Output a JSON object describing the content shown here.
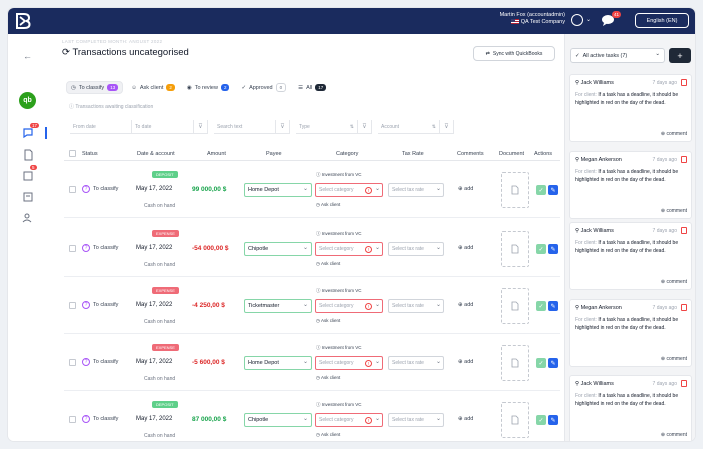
{
  "topbar": {
    "user_name": "Martin Fox (accountadmin)",
    "company": "QA Test Company",
    "chat_badge": "41",
    "language": "English (EN)"
  },
  "sidebar": {
    "chat_badge": "17",
    "notify_badge": "5"
  },
  "page": {
    "breadcrumb": "LAST COMPLETED MONTH: ANGUST 2022",
    "title": "Transactions uncategorised",
    "sync_label": "Sync with QuickBooks"
  },
  "tabs": [
    {
      "label": "To classify",
      "count": "13",
      "color": "#a855f7"
    },
    {
      "label": "Ask client",
      "count": "2",
      "color": "#f59e0b"
    },
    {
      "label": "To review",
      "count": "2",
      "color": "#2563eb"
    },
    {
      "label": "Approved",
      "count": "0",
      "color": "#d1d5db"
    },
    {
      "label": "All",
      "count": "17",
      "color": "#1f2937"
    }
  ],
  "hint": "Transactions awaiting classification",
  "filters": {
    "from_date": "From date",
    "to_date": "To date",
    "search": "Search text",
    "type": "Type",
    "account": "Account"
  },
  "columns": {
    "status": "Status",
    "date_account": "Date & account",
    "amount": "Amount",
    "payee": "Payee",
    "category": "Category",
    "tax_rate": "Tax Rate",
    "comments": "Comments",
    "document": "Document",
    "actions": "Actions"
  },
  "rows": [
    {
      "status": "To classify",
      "badge": "DEPOSIT",
      "date": "May 17, 2022",
      "account": "Cash on hand",
      "amount": "99 000,00 $",
      "payee": "Home Depot",
      "cat_hint": "Investment from VC",
      "cat_placeholder": "Select category",
      "ask": "Ask client",
      "tax_placeholder": "Select tax rate",
      "add": "add"
    },
    {
      "status": "To classify",
      "badge": "EXPENSE",
      "date": "May 17, 2022",
      "account": "Cash on hand",
      "amount": "-54 000,00 $",
      "payee": "Chipotle",
      "cat_hint": "Investment from VC",
      "cat_placeholder": "Select category",
      "ask": "Ask client",
      "tax_placeholder": "Select tax rate",
      "add": "add"
    },
    {
      "status": "To classify",
      "badge": "EXPENSE",
      "date": "May 17, 2022",
      "account": "Cash on hand",
      "amount": "-4 250,00 $",
      "payee": "Ticketmaster",
      "cat_hint": "Investment from VC",
      "cat_placeholder": "Select category",
      "ask": "Ask client",
      "tax_placeholder": "Select tax rate",
      "add": "add"
    },
    {
      "status": "To classify",
      "badge": "EXPENSE",
      "date": "May 17, 2022",
      "account": "Cash on hand",
      "amount": "-5 600,00 $",
      "payee": "Home Depot",
      "cat_hint": "Investment from VC",
      "cat_placeholder": "Select category",
      "ask": "Ask client",
      "tax_placeholder": "Select tax rate",
      "add": "add"
    },
    {
      "status": "To classify",
      "badge": "DEPOSIT",
      "date": "May 17, 2022",
      "account": "Cash on hand",
      "amount": "87 000,00 $",
      "payee": "Chipotle",
      "cat_hint": "Investment from VC",
      "cat_placeholder": "Select category",
      "ask": "Ask client",
      "tax_placeholder": "Select tax rate",
      "add": "add"
    }
  ],
  "tasks": {
    "dropdown": "All active tasks (7)",
    "plus": "+",
    "items": [
      {
        "name": "Jack Williams",
        "ago": "7 days ago",
        "label": "For client:",
        "text": "If a task has a deadline, it should be highlighted in red on the day of the dead.",
        "comment": "comment"
      },
      {
        "name": "Megan Ankerson",
        "ago": "7 days ago",
        "label": "For client:",
        "text": "If a task has a deadline, it should be highlighted in red on the day of the dead.",
        "comment": "comment"
      },
      {
        "name": "Jack Williams",
        "ago": "7 days ago",
        "label": "For client:",
        "text": "If a task has a deadline, it should be highlighted in red on the day of the dead.",
        "comment": "comment"
      },
      {
        "name": "Megan Ankerson",
        "ago": "7 days ago",
        "label": "For client:",
        "text": "If a task has a deadline, it should be highlighted in red on the day of the dead.",
        "comment": "comment"
      },
      {
        "name": "Jack Williams",
        "ago": "7 days ago",
        "label": "For client:",
        "text": "If a task has a deadline, it should be highlighted in red on the day of the dead.",
        "comment": "comment"
      }
    ]
  }
}
